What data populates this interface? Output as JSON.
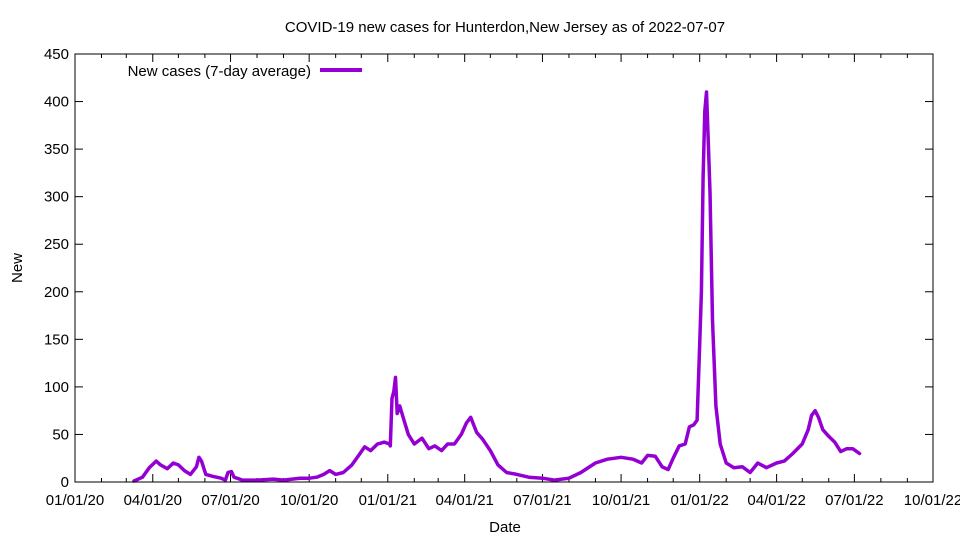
{
  "chart_data": {
    "type": "line",
    "title": "COVID-19 new cases for Hunterdon,New Jersey as of 2022-07-07",
    "xlabel": "Date",
    "ylabel": "New",
    "xlim": [
      "2020-01-01",
      "2022-10-01"
    ],
    "ylim": [
      0,
      450
    ],
    "x_ticks": [
      "01/01/20",
      "04/01/20",
      "07/01/20",
      "10/01/20",
      "01/01/21",
      "04/01/21",
      "07/01/21",
      "10/01/21",
      "01/01/22",
      "04/01/22",
      "07/01/22",
      "10/01/22"
    ],
    "y_ticks": [
      0,
      50,
      100,
      150,
      200,
      250,
      300,
      350,
      400,
      450
    ],
    "grid": false,
    "legend_position": "top-left",
    "series": [
      {
        "name": "New cases (7-day average)",
        "color": "#9400d3",
        "x": [
          "2020-03-10",
          "2020-03-20",
          "2020-03-28",
          "2020-04-05",
          "2020-04-10",
          "2020-04-18",
          "2020-04-25",
          "2020-05-01",
          "2020-05-08",
          "2020-05-15",
          "2020-05-22",
          "2020-05-25",
          "2020-05-28",
          "2020-06-02",
          "2020-06-10",
          "2020-06-20",
          "2020-06-25",
          "2020-06-28",
          "2020-07-02",
          "2020-07-05",
          "2020-07-15",
          "2020-08-01",
          "2020-08-20",
          "2020-09-01",
          "2020-09-20",
          "2020-10-01",
          "2020-10-10",
          "2020-10-18",
          "2020-10-25",
          "2020-11-01",
          "2020-11-10",
          "2020-11-20",
          "2020-11-28",
          "2020-12-05",
          "2020-12-12",
          "2020-12-20",
          "2020-12-28",
          "2021-01-03",
          "2021-01-04",
          "2021-01-06",
          "2021-01-08",
          "2021-01-10",
          "2021-01-12",
          "2021-01-15",
          "2021-01-20",
          "2021-01-25",
          "2021-02-01",
          "2021-02-10",
          "2021-02-18",
          "2021-02-25",
          "2021-03-05",
          "2021-03-12",
          "2021-03-20",
          "2021-03-28",
          "2021-04-03",
          "2021-04-08",
          "2021-04-15",
          "2021-04-22",
          "2021-05-01",
          "2021-05-10",
          "2021-05-20",
          "2021-06-01",
          "2021-06-15",
          "2021-07-01",
          "2021-07-15",
          "2021-08-01",
          "2021-08-15",
          "2021-09-01",
          "2021-09-15",
          "2021-10-01",
          "2021-10-15",
          "2021-10-25",
          "2021-11-01",
          "2021-11-10",
          "2021-11-18",
          "2021-11-25",
          "2021-12-01",
          "2021-12-08",
          "2021-12-15",
          "2021-12-20",
          "2021-12-25",
          "2021-12-29",
          "2022-01-01",
          "2022-01-03",
          "2022-01-05",
          "2022-01-07",
          "2022-01-09",
          "2022-01-11",
          "2022-01-13",
          "2022-01-16",
          "2022-01-20",
          "2022-01-25",
          "2022-02-01",
          "2022-02-10",
          "2022-02-20",
          "2022-03-01",
          "2022-03-10",
          "2022-03-20",
          "2022-04-01",
          "2022-04-10",
          "2022-04-20",
          "2022-05-01",
          "2022-05-08",
          "2022-05-12",
          "2022-05-16",
          "2022-05-20",
          "2022-05-25",
          "2022-06-01",
          "2022-06-08",
          "2022-06-15",
          "2022-06-22",
          "2022-06-29",
          "2022-07-07"
        ],
        "values": [
          1,
          5,
          15,
          22,
          18,
          14,
          20,
          18,
          12,
          8,
          16,
          26,
          22,
          8,
          6,
          4,
          2,
          10,
          11,
          5,
          2,
          2,
          3,
          2,
          4,
          4,
          5,
          8,
          12,
          8,
          10,
          18,
          28,
          37,
          33,
          40,
          42,
          40,
          38,
          88,
          95,
          110,
          72,
          80,
          65,
          50,
          40,
          46,
          35,
          38,
          33,
          40,
          40,
          50,
          62,
          68,
          52,
          45,
          33,
          18,
          10,
          8,
          5,
          4,
          2,
          4,
          10,
          20,
          24,
          26,
          24,
          20,
          28,
          27,
          16,
          13,
          25,
          38,
          40,
          58,
          60,
          65,
          145,
          200,
          320,
          390,
          410,
          360,
          305,
          170,
          80,
          40,
          20,
          15,
          16,
          10,
          20,
          15,
          20,
          22,
          30,
          40,
          55,
          70,
          75,
          68,
          55,
          48,
          42,
          32,
          35,
          35,
          30
        ]
      }
    ]
  }
}
